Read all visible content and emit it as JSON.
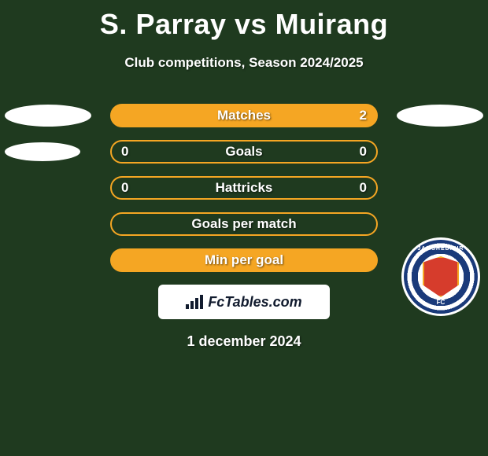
{
  "title": "S. Parray vs Muirang",
  "subtitle": "Club competitions, Season 2024/2025",
  "branding_text": "FcTables.com",
  "date_text": "1 december 2024",
  "colors": {
    "background": "#1f3a1f",
    "accent": "#f5a623",
    "text": "#ffffff",
    "crest_ring": "#1a3a7a",
    "crest_shield": "#d63c2c"
  },
  "crest": {
    "top_text": "JAMSHEDPUR",
    "bottom_text": "FC"
  },
  "rows": [
    {
      "label": "Matches",
      "left": "",
      "right": "2",
      "filled": true,
      "left_ellipse": true,
      "right_ellipse": true,
      "small_ellipse": false
    },
    {
      "label": "Goals",
      "left": "0",
      "right": "0",
      "filled": false,
      "left_ellipse": true,
      "right_ellipse": false,
      "small_ellipse": true
    },
    {
      "label": "Hattricks",
      "left": "0",
      "right": "0",
      "filled": false,
      "left_ellipse": false,
      "right_ellipse": false,
      "small_ellipse": false
    },
    {
      "label": "Goals per match",
      "left": "",
      "right": "",
      "filled": false,
      "left_ellipse": false,
      "right_ellipse": false,
      "small_ellipse": false
    },
    {
      "label": "Min per goal",
      "left": "",
      "right": "",
      "filled": true,
      "left_ellipse": false,
      "right_ellipse": false,
      "small_ellipse": false
    }
  ]
}
